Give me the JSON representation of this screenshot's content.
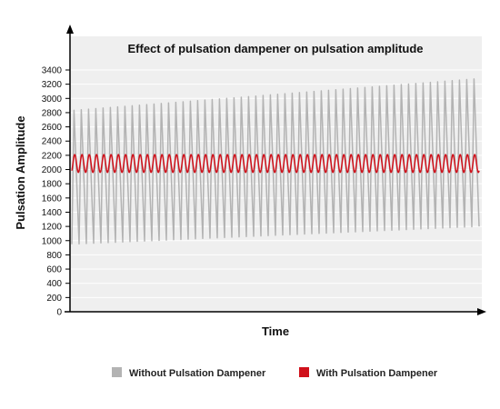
{
  "chart_data": {
    "type": "line",
    "title": "Effect of pulsation dampener on pulsation amplitude",
    "xlabel": "Time",
    "ylabel": "Pulsation Amplitude",
    "ylim": [
      0,
      3400
    ],
    "yticks": [
      0,
      200,
      400,
      600,
      800,
      1000,
      1200,
      1400,
      1600,
      1800,
      2000,
      2200,
      2400,
      2600,
      2800,
      3000,
      3200,
      3400
    ],
    "grid": true,
    "legend_position": "bottom",
    "series": [
      {
        "name": "Without Pulsation Dampener",
        "color": "#b3b3b3",
        "cycles": 56,
        "peak_start": 2830,
        "peak_end": 3280,
        "trough_start": 950,
        "trough_end": 1200
      },
      {
        "name": "With Pulsation Dampener",
        "color": "#d0111b",
        "cycles": 56,
        "max": 2210,
        "min": 1960
      }
    ]
  }
}
